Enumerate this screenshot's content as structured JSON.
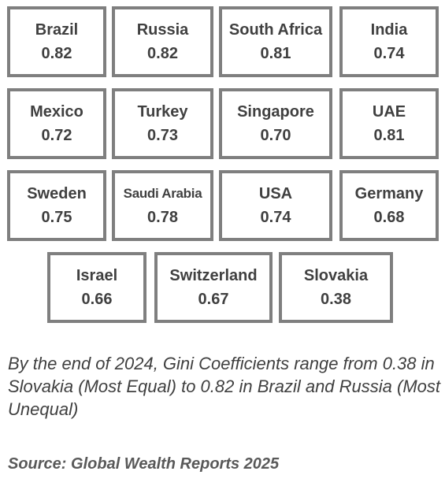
{
  "countries": [
    {
      "name": "Brazil",
      "value": "0.82"
    },
    {
      "name": "Russia",
      "value": "0.82"
    },
    {
      "name": "South Africa",
      "value": "0.81"
    },
    {
      "name": "India",
      "value": "0.74"
    },
    {
      "name": "Mexico",
      "value": "0.72"
    },
    {
      "name": "Turkey",
      "value": "0.73"
    },
    {
      "name": "Singapore",
      "value": "0.70"
    },
    {
      "name": "UAE",
      "value": "0.81"
    },
    {
      "name": "Sweden",
      "value": "0.75"
    },
    {
      "name": "Saudi Arabia",
      "value": "0.78"
    },
    {
      "name": "USA",
      "value": "0.74"
    },
    {
      "name": "Germany",
      "value": "0.68"
    },
    {
      "name": "Israel",
      "value": "0.66"
    },
    {
      "name": "Switzerland",
      "value": "0.67"
    },
    {
      "name": "Slovakia",
      "value": "0.38"
    }
  ],
  "caption": "By the end of 2024, Gini Coefficients range from 0.38 in Slovakia (Most Equal) to 0.82 in Brazil and Russia (Most Unequal)",
  "source": "Source: Global Wealth Reports 2025",
  "colors": {
    "border": "#7f7f7f",
    "text": "#404040",
    "source_text": "#595959"
  }
}
